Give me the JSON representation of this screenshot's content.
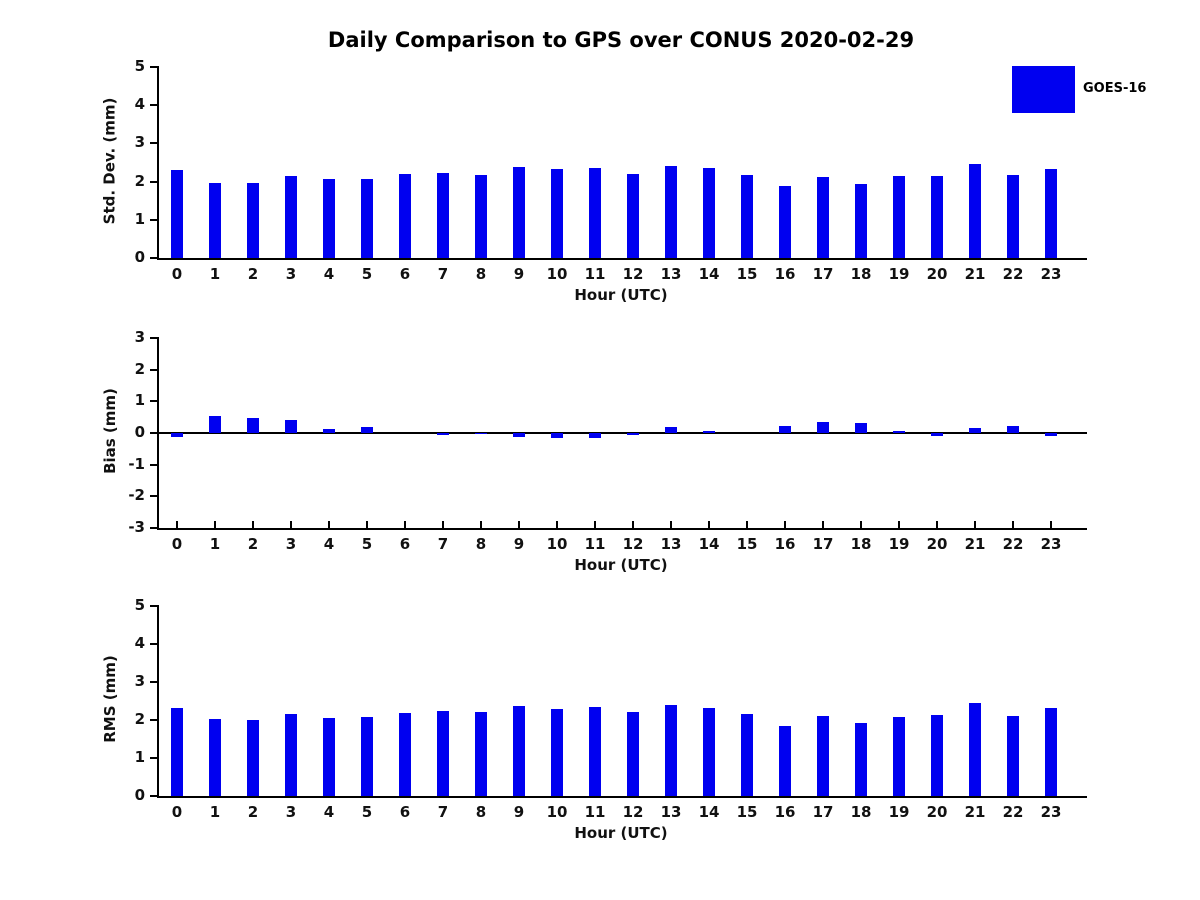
{
  "title": "Daily Comparison to GPS over CONUS 2020-02-29",
  "legend": {
    "label": "GOES-16",
    "color": "#0000f0"
  },
  "colors": {
    "bar": "#0000f0",
    "axis": "#000000"
  },
  "chart_data": [
    {
      "type": "bar",
      "title": "",
      "ylabel": "Std. Dev. (mm)",
      "xlabel": "Hour (UTC)",
      "ylim": [
        0,
        5
      ],
      "yticks": [
        0,
        1,
        2,
        3,
        4,
        5
      ],
      "grid": false,
      "legend_position": "upper-right-outside",
      "series_name": "GOES-16",
      "categories": [
        "0",
        "1",
        "2",
        "3",
        "4",
        "5",
        "6",
        "7",
        "8",
        "9",
        "10",
        "11",
        "12",
        "13",
        "14",
        "15",
        "16",
        "17",
        "18",
        "19",
        "20",
        "21",
        "22",
        "23"
      ],
      "values": [
        2.31,
        1.96,
        1.96,
        2.15,
        2.08,
        2.08,
        2.19,
        2.22,
        2.17,
        2.39,
        2.32,
        2.36,
        2.21,
        2.42,
        2.36,
        2.16,
        1.88,
        2.12,
        1.94,
        2.14,
        2.14,
        2.45,
        2.17,
        2.34
      ]
    },
    {
      "type": "bar",
      "title": "",
      "ylabel": "Bias (mm)",
      "xlabel": "Hour (UTC)",
      "ylim": [
        -3,
        3
      ],
      "yticks": [
        -3,
        -2,
        -1,
        0,
        1,
        2,
        3
      ],
      "grid": false,
      "zero_line": true,
      "series_name": "GOES-16",
      "categories": [
        "0",
        "1",
        "2",
        "3",
        "4",
        "5",
        "6",
        "7",
        "8",
        "9",
        "10",
        "11",
        "12",
        "13",
        "14",
        "15",
        "16",
        "17",
        "18",
        "19",
        "20",
        "21",
        "22",
        "23"
      ],
      "values": [
        -0.12,
        0.55,
        0.48,
        0.4,
        0.12,
        0.18,
        0.0,
        -0.07,
        -0.02,
        -0.12,
        -0.17,
        -0.15,
        -0.06,
        0.18,
        0.05,
        0.0,
        0.23,
        0.35,
        0.32,
        0.05,
        -0.1,
        0.16,
        0.22,
        -0.08
      ]
    },
    {
      "type": "bar",
      "title": "",
      "ylabel": "RMS (mm)",
      "xlabel": "Hour (UTC)",
      "ylim": [
        0,
        5
      ],
      "yticks": [
        0,
        1,
        2,
        3,
        4,
        5
      ],
      "grid": false,
      "series_name": "GOES-16",
      "categories": [
        "0",
        "1",
        "2",
        "3",
        "4",
        "5",
        "6",
        "7",
        "8",
        "9",
        "10",
        "11",
        "12",
        "13",
        "14",
        "15",
        "16",
        "17",
        "18",
        "19",
        "20",
        "21",
        "22",
        "23"
      ],
      "values": [
        2.32,
        2.02,
        2.0,
        2.17,
        2.06,
        2.07,
        2.19,
        2.24,
        2.21,
        2.36,
        2.29,
        2.34,
        2.2,
        2.4,
        2.31,
        2.15,
        1.85,
        2.11,
        1.91,
        2.09,
        2.12,
        2.44,
        2.11,
        2.32
      ]
    }
  ]
}
